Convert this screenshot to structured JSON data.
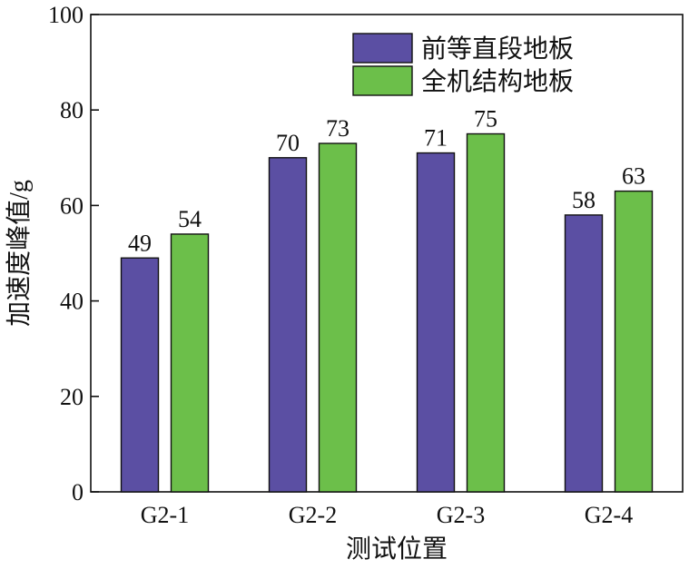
{
  "chart_data": {
    "type": "bar",
    "categories": [
      "G2-1",
      "G2-2",
      "G2-3",
      "G2-4"
    ],
    "series": [
      {
        "name": "前等直段地板",
        "values": [
          49,
          70,
          71,
          58
        ],
        "color": "#5b4fa3"
      },
      {
        "name": "全机结构地板",
        "values": [
          54,
          73,
          75,
          63
        ],
        "color": "#6cbf4a"
      }
    ],
    "xlabel": "测试位置",
    "ylabel": "加速度峰值/g",
    "ylim": [
      0,
      100
    ],
    "yticks": [
      0,
      20,
      40,
      60,
      80,
      100
    ],
    "grid": false,
    "legend_position": "top-right",
    "data_labels": true
  }
}
